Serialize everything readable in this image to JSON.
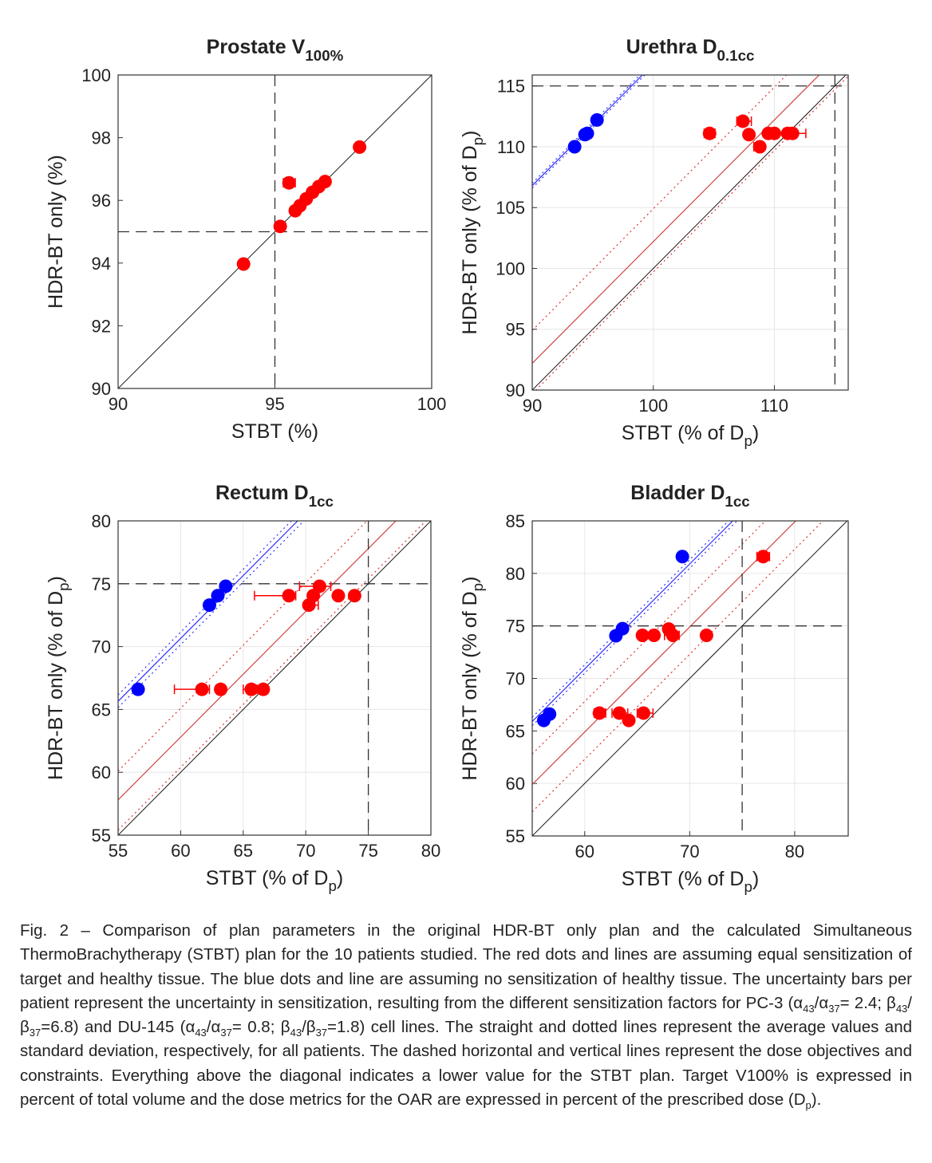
{
  "chart_data": [
    {
      "type": "scatter",
      "title": [
        {
          "text": "Prostate V"
        },
        {
          "sub": "100%"
        }
      ],
      "xlabel": [
        {
          "text": "STBT (%)"
        }
      ],
      "ylabel": [
        {
          "text": "HDR-BT only (%)"
        }
      ],
      "xlim": [
        90,
        100
      ],
      "ylim": [
        90,
        100
      ],
      "xticks": [
        90,
        95,
        100
      ],
      "yticks": [
        90,
        92,
        94,
        96,
        98,
        100
      ],
      "grid": false,
      "vline": 95,
      "hline": 95,
      "lines": [
        {
          "offset": 0,
          "color": "#000000",
          "dash": "solid"
        }
      ],
      "series": [
        {
          "color": "#ff0000",
          "x": [
            94,
            95.17,
            95.45,
            95.65,
            95.8,
            96.0,
            96.2,
            96.4,
            96.6,
            97.7
          ],
          "y": [
            93.97,
            95.17,
            96.56,
            95.67,
            95.83,
            96.05,
            96.26,
            96.44,
            96.6,
            97.7
          ],
          "xmin": [
            null,
            null,
            95.27,
            null,
            null,
            null,
            null,
            null,
            null,
            null
          ],
          "xmax": [
            null,
            null,
            95.65,
            null,
            null,
            null,
            null,
            null,
            null,
            null
          ]
        }
      ]
    },
    {
      "type": "scatter",
      "title": [
        {
          "text": "Urethra D"
        },
        {
          "sub": "0.1cc"
        }
      ],
      "xlabel": [
        {
          "text": "STBT (% of D"
        },
        {
          "sub": "p"
        },
        {
          "text": ")"
        }
      ],
      "ylabel": [
        {
          "text": "HDR-BT only (% of D"
        },
        {
          "sub": "p"
        },
        {
          "text": ")"
        }
      ],
      "xlim": [
        90,
        116.1
      ],
      "ylim": [
        90,
        115.9
      ],
      "xticks": [
        90,
        100,
        110
      ],
      "yticks": [
        90,
        95,
        100,
        105,
        110,
        115
      ],
      "grid": true,
      "vline": 115,
      "hline": 115,
      "lines": [
        {
          "offset": 0,
          "color": "#000000",
          "dash": "solid"
        },
        {
          "offset": 2.2,
          "color": "#d04040",
          "dash": "solid"
        },
        {
          "offset": 4.9,
          "color": "#e03030",
          "dash": "dotted"
        },
        {
          "offset": -0.3,
          "color": "#e03030",
          "dash": "dotted"
        },
        {
          "offset": 16.8,
          "color": "#3030ff",
          "dash": "solid"
        },
        {
          "offset": 16.6,
          "color": "#3030ff",
          "dash": "dotted"
        },
        {
          "offset": 17.0,
          "color": "#3030ff",
          "dash": "dotted"
        }
      ],
      "series": [
        {
          "color": "#ff0000",
          "x": [
            104.65,
            107.4,
            107.9,
            108.8,
            109.5,
            110,
            111.1,
            111.5
          ],
          "y": [
            111.1,
            112.1,
            111.0,
            110.0,
            111.1,
            111.1,
            111.1,
            111.1
          ],
          "xmin": [
            104.2,
            106.9,
            null,
            108.3,
            null,
            null,
            null,
            110.3
          ],
          "xmax": [
            105.1,
            108.1,
            null,
            109.1,
            null,
            null,
            null,
            112.6
          ]
        },
        {
          "color": "#0000ff",
          "x": [
            93.5,
            94.36,
            94.55,
            95.35
          ],
          "y": [
            110,
            111,
            111.1,
            112.2
          ],
          "xmin": [
            null,
            null,
            null,
            null
          ],
          "xmax": [
            null,
            null,
            null,
            null
          ]
        }
      ]
    },
    {
      "type": "scatter",
      "title": [
        {
          "text": "Rectum D"
        },
        {
          "sub": "1cc"
        }
      ],
      "xlabel": [
        {
          "text": "STBT (% of D"
        },
        {
          "sub": "p"
        },
        {
          "text": ")"
        }
      ],
      "ylabel": [
        {
          "text": "HDR-BT only (% of D"
        },
        {
          "sub": "p"
        },
        {
          "text": ")"
        }
      ],
      "xlim": [
        55,
        80
      ],
      "ylim": [
        55,
        80
      ],
      "xticks": [
        55,
        60,
        65,
        70,
        75,
        80
      ],
      "yticks": [
        55,
        60,
        65,
        70,
        75,
        80
      ],
      "grid": true,
      "vline": 75,
      "hline": 75,
      "lines": [
        {
          "offset": 0,
          "color": "#000000",
          "dash": "solid"
        },
        {
          "offset": 2.8,
          "color": "#d04040",
          "dash": "solid"
        },
        {
          "offset": 5.1,
          "color": "#e03030",
          "dash": "dotted"
        },
        {
          "offset": 0.4,
          "color": "#e03030",
          "dash": "dotted"
        },
        {
          "offset": 10.65,
          "color": "#3030ff",
          "dash": "solid"
        },
        {
          "offset": 10.15,
          "color": "#3030ff",
          "dash": "dotted"
        },
        {
          "offset": 11.15,
          "color": "#3030ff",
          "dash": "dotted"
        }
      ],
      "series": [
        {
          "color": "#ff0000",
          "x": [
            61.7,
            63.2,
            65.65,
            66.6,
            68.65,
            70.25,
            70.6,
            71.1,
            72.6,
            73.9
          ],
          "y": [
            66.6,
            66.6,
            66.6,
            66.6,
            74.05,
            73.3,
            74.05,
            74.8,
            74.05,
            74.05
          ],
          "xmin": [
            59.5,
            null,
            65.0,
            null,
            65.9,
            69.9,
            null,
            69.5,
            null,
            null
          ],
          "xmax": [
            62.3,
            null,
            66.1,
            null,
            69.2,
            71.0,
            null,
            72.0,
            null,
            null
          ]
        },
        {
          "color": "#0000ff",
          "x": [
            56.6,
            62.3,
            62.97,
            63.6
          ],
          "y": [
            66.6,
            73.3,
            74.05,
            74.8
          ],
          "xmin": [
            null,
            null,
            null,
            null
          ],
          "xmax": [
            null,
            null,
            null,
            null
          ]
        }
      ]
    },
    {
      "type": "scatter",
      "title": [
        {
          "text": "Bladder D"
        },
        {
          "sub": "1cc"
        }
      ],
      "xlabel": [
        {
          "text": "STBT (% of D"
        },
        {
          "sub": "p"
        },
        {
          "text": ")"
        }
      ],
      "ylabel": [
        {
          "text": "HDR-BT only (% of D"
        },
        {
          "sub": "p"
        },
        {
          "text": ")"
        }
      ],
      "xlim": [
        55,
        85.1
      ],
      "ylim": [
        55,
        85
      ],
      "xticks": [
        60,
        70,
        80
      ],
      "yticks": [
        55,
        60,
        65,
        70,
        75,
        80,
        85
      ],
      "grid": true,
      "vline": 75,
      "hline": 75,
      "lines": [
        {
          "offset": 0,
          "color": "#000000",
          "dash": "solid"
        },
        {
          "offset": 4.9,
          "color": "#d04040",
          "dash": "solid"
        },
        {
          "offset": 7.8,
          "color": "#e03030",
          "dash": "dotted"
        },
        {
          "offset": 2.3,
          "color": "#e03030",
          "dash": "dotted"
        },
        {
          "offset": 10.9,
          "color": "#3030ff",
          "dash": "solid"
        },
        {
          "offset": 10.5,
          "color": "#3030ff",
          "dash": "dotted"
        },
        {
          "offset": 11.3,
          "color": "#3030ff",
          "dash": "dotted"
        }
      ],
      "series": [
        {
          "color": "#ff0000",
          "x": [
            61.4,
            63.3,
            64.2,
            65.6,
            65.5,
            66.6,
            68.0,
            68.4,
            71.6,
            77.0
          ],
          "y": [
            66.7,
            66.7,
            66.0,
            66.7,
            74.1,
            74.1,
            74.7,
            74.1,
            74.1,
            81.6
          ],
          "xmin": [
            60.9,
            62.6,
            null,
            65.0,
            null,
            null,
            null,
            67.6,
            null,
            76.4
          ],
          "xmax": [
            62.0,
            64.1,
            null,
            66.5,
            null,
            null,
            null,
            69.0,
            null,
            77.6
          ]
        },
        {
          "color": "#0000ff",
          "x": [
            56.1,
            56.65,
            62.97,
            63.6,
            69.3
          ],
          "y": [
            66,
            66.6,
            74.06,
            74.74,
            81.6
          ],
          "xmin": [
            null,
            null,
            null,
            null,
            null
          ],
          "xmax": [
            null,
            null,
            null,
            null,
            null
          ]
        }
      ]
    }
  ],
  "caption": [
    {
      "text": "Fig. 2 – Comparison of plan parameters in the original HDR-BT only plan and the calculated Simultaneous ThermoBrachytherapy (STBT) plan for the 10 patients studied. The red dots and lines are assuming equal sensitization of target and healthy tissue. The blue dots and line are assuming no sensitization of healthy tissue. The uncertainty bars per patient represent the uncertainty in sensitization, resulting from the different sensitization factors for PC-3 (α"
    },
    {
      "sub": "43"
    },
    {
      "text": "/α"
    },
    {
      "sub": "37"
    },
    {
      "text": "= 2.4;  β"
    },
    {
      "sub": "43"
    },
    {
      "text": "/β"
    },
    {
      "sub": "37"
    },
    {
      "text": "=6.8)  and DU-145 (α"
    },
    {
      "sub": "43"
    },
    {
      "text": "/α"
    },
    {
      "sub": "37"
    },
    {
      "text": "= 0.8;  β"
    },
    {
      "sub": "43"
    },
    {
      "text": "/β"
    },
    {
      "sub": "37"
    },
    {
      "text": "=1.8)  cell lines. The straight and dotted lines represent the average values and standard deviation, respectively, for all patients. The dashed horizontal and vertical lines represent the dose objectives and constraints. Everything above the diagonal indicates a lower value for the STBT plan. Target V100% is expressed in percent of total volume and the dose metrics for the OAR are expressed in percent of the prescribed dose (D"
    },
    {
      "sub": "p"
    },
    {
      "text": ")."
    }
  ]
}
